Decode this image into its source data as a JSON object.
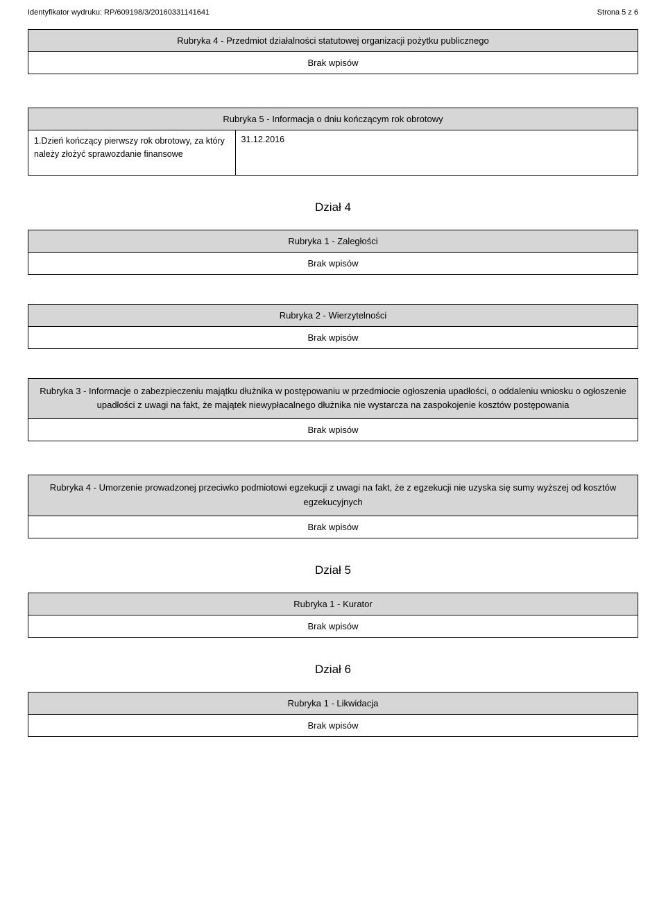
{
  "header": {
    "left": "Identyfikator wydruku: RP/609198/3/20160331141641",
    "right": "Strona 5 z 6"
  },
  "r4_statut": {
    "title": "Rubryka 4 - Przedmiot działalności statutowej organizacji pożytku publicznego",
    "empty": "Brak wpisów"
  },
  "r5_info": {
    "title": "Rubryka 5 - Informacja o dniu kończącym rok obrotowy",
    "field_label": "1.Dzień kończący pierwszy rok obrotowy, za który należy złożyć sprawozdanie finansowe",
    "field_value": "31.12.2016"
  },
  "dzial4": {
    "title": "Dział 4",
    "r1": {
      "title": "Rubryka 1 - Zaległości",
      "empty": "Brak wpisów"
    },
    "r2": {
      "title": "Rubryka 2 - Wierzytelności",
      "empty": "Brak wpisów"
    },
    "r3": {
      "title": "Rubryka 3 - Informacje o zabezpieczeniu majątku dłużnika w postępowaniu w przedmiocie ogłoszenia upadłości, o oddaleniu wniosku o ogłoszenie upadłości z uwagi na fakt, że majątek niewypłacalnego dłużnika nie wystarcza na zaspokojenie kosztów postępowania",
      "empty": "Brak wpisów"
    },
    "r4": {
      "title": "Rubryka 4 - Umorzenie prowadzonej przeciwko podmiotowi egzekucji z uwagi na fakt, że z egzekucji nie uzyska się sumy wyższej od kosztów egzekucyjnych",
      "empty": "Brak wpisów"
    }
  },
  "dzial5": {
    "title": "Dział 5",
    "r1": {
      "title": "Rubryka 1 - Kurator",
      "empty": "Brak wpisów"
    }
  },
  "dzial6": {
    "title": "Dział 6",
    "r1": {
      "title": "Rubryka 1 - Likwidacja",
      "empty": "Brak wpisów"
    }
  }
}
